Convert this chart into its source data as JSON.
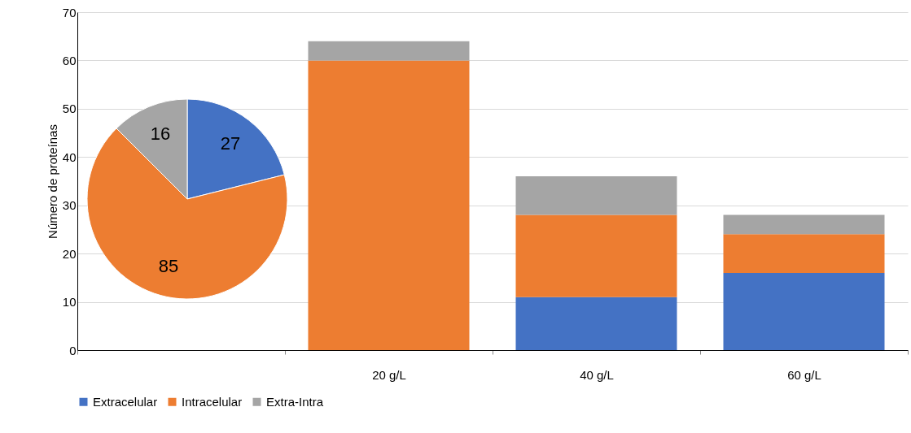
{
  "chart_data": [
    {
      "type": "bar",
      "stacked": true,
      "ylabel": "Número de proteínas",
      "categories": [
        null,
        "20 g/L",
        "40 g/L",
        "60 g/L"
      ],
      "series": [
        {
          "name": "Extracelular",
          "color": "#4472c4",
          "values": [
            null,
            0,
            11,
            16
          ]
        },
        {
          "name": "Intracelular",
          "color": "#ed7d31",
          "values": [
            null,
            60,
            17,
            8
          ]
        },
        {
          "name": "Extra-Intra",
          "color": "#a5a5a5",
          "values": [
            null,
            4,
            8,
            4
          ]
        }
      ],
      "ylim": [
        0,
        70
      ],
      "yticks": [
        0,
        10,
        20,
        30,
        40,
        50,
        60,
        70
      ],
      "grid": "y",
      "legend": "bottom"
    },
    {
      "type": "pie",
      "categories": [
        null,
        null,
        null
      ],
      "values": [
        27,
        85,
        16
      ],
      "colors": [
        "#4472c4",
        "#ed7d31",
        "#a5a5a5"
      ],
      "data_labels": true
    }
  ]
}
